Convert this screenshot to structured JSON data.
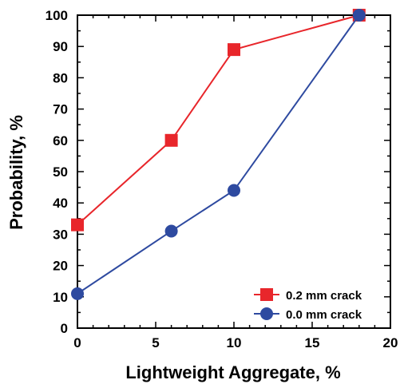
{
  "chart_data": {
    "type": "line",
    "title": "",
    "xlabel": "Lightweight Aggregate, %",
    "ylabel": "Probability, %",
    "xlim": [
      0,
      20
    ],
    "ylim": [
      0,
      100
    ],
    "xticks": [
      0,
      5,
      10,
      15,
      20
    ],
    "yticks": [
      0,
      10,
      20,
      30,
      40,
      50,
      60,
      70,
      80,
      90,
      100
    ],
    "grid": false,
    "legend_position": "bottom-right",
    "series": [
      {
        "name": "0.2 mm crack",
        "color": "#e8262b",
        "marker": "square",
        "x": [
          0,
          6,
          10,
          18
        ],
        "y": [
          33,
          60,
          89,
          100
        ]
      },
      {
        "name": "0.0 mm crack",
        "color": "#2e4aa0",
        "marker": "circle",
        "x": [
          0,
          6,
          10,
          18
        ],
        "y": [
          11,
          31,
          44,
          100
        ]
      }
    ]
  }
}
